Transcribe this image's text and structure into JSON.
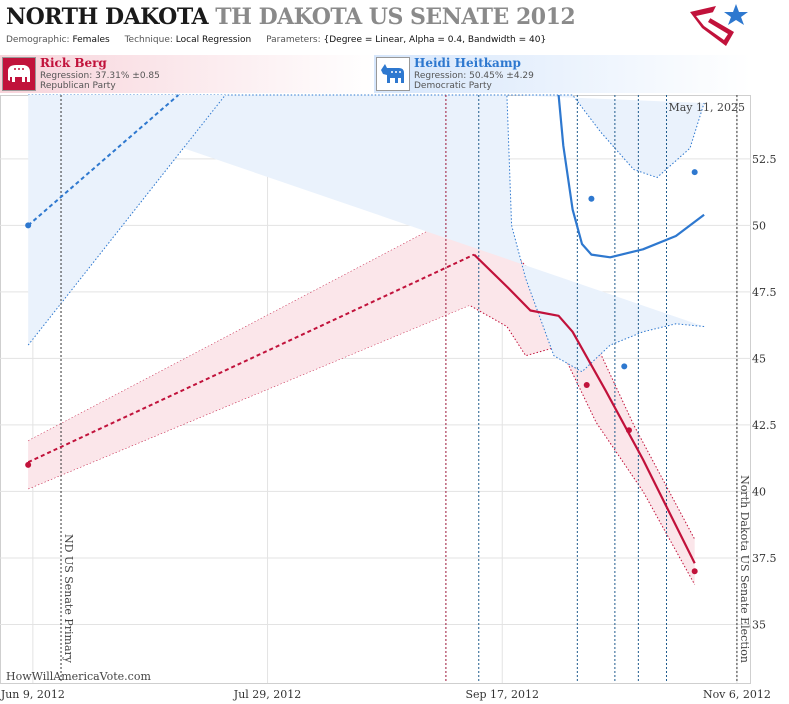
{
  "header": {
    "title_main": "NORTH DAKOTA",
    "title_sub": "TH DAKOTA US SENATE 2012",
    "demographic_label": "Demographic:",
    "demographic_value": "Females",
    "technique_label": "Technique:",
    "technique_value": "Local Regression",
    "parameters_label": "Parameters:",
    "parameters_value": "{Degree = Linear, Alpha = 0.4, Bandwidth = 40}"
  },
  "candidates": {
    "republican": {
      "name": "Rick Berg",
      "regression": "Regression: 37.31% ±0.85",
      "party": "Republican Party",
      "color": "#c1123b",
      "icon": "elephant-icon"
    },
    "democrat": {
      "name": "Heidi Heitkamp",
      "regression": "Regression: 50.45% ±4.29",
      "party": "Democratic Party",
      "color": "#2e78cf",
      "icon": "donkey-icon"
    }
  },
  "watermark": "HowWillAmericaVote.com",
  "date_stamp": "May 11, 2025",
  "chart_data": {
    "type": "line",
    "x_axis": {
      "type": "date",
      "min": "2012-06-02",
      "max": "2012-11-09",
      "ticks": [
        "2012-06-09",
        "2012-07-29",
        "2012-09-17",
        "2012-11-06"
      ],
      "tick_labels": [
        "Jun 9, 2012",
        "Jul 29, 2012",
        "Sep 17, 2012",
        "Nov 6, 2012"
      ]
    },
    "y_axis": {
      "min": 32.8,
      "max": 54.9,
      "ticks": [
        35,
        37.5,
        40,
        42.5,
        45,
        47.5,
        50,
        52.5
      ],
      "tick_labels": [
        "35",
        "37.5",
        "40",
        "42.5",
        "45",
        "47.5",
        "50",
        "52.5"
      ],
      "position": "right"
    },
    "grid": true,
    "events": [
      {
        "date": "2012-06-15",
        "label": "ND US Senate Primary"
      },
      {
        "date": "2012-11-06",
        "label": "North Dakota US Senate Election"
      }
    ],
    "poll_dates": [
      {
        "date": "2012-09-05",
        "party": "republican"
      },
      {
        "date": "2012-09-12",
        "party": "democrat"
      },
      {
        "date": "2012-10-03",
        "party": "democrat"
      },
      {
        "date": "2012-10-11",
        "party": "democrat"
      },
      {
        "date": "2012-10-16",
        "party": "democrat"
      },
      {
        "date": "2012-10-22",
        "party": "democrat"
      }
    ],
    "series": [
      {
        "name": "Rick Berg",
        "color": "#c1123b",
        "band_color": "#fbe6ea",
        "points": [
          [
            "2012-06-08",
            41.0
          ],
          [
            "2012-10-05",
            44.0
          ],
          [
            "2012-10-14",
            42.3
          ],
          [
            "2012-10-28",
            37.0
          ]
        ],
        "extrapolated_line": [
          [
            "2012-06-08",
            41.1
          ],
          [
            "2012-09-11",
            48.9
          ]
        ],
        "regression_line": [
          [
            "2012-09-11",
            48.9
          ],
          [
            "2012-09-18",
            47.7
          ],
          [
            "2012-09-23",
            46.8
          ],
          [
            "2012-09-29",
            46.6
          ],
          [
            "2012-10-02",
            46.0
          ],
          [
            "2012-10-09",
            43.8
          ],
          [
            "2012-10-17",
            41.2
          ],
          [
            "2012-10-28",
            37.3
          ]
        ],
        "band_upper": [
          [
            "2012-06-08",
            41.9
          ],
          [
            "2012-09-10",
            50.6
          ],
          [
            "2012-09-18",
            49.2
          ],
          [
            "2012-09-23",
            48.3
          ],
          [
            "2012-09-30",
            47.6
          ],
          [
            "2012-10-05",
            46.3
          ],
          [
            "2012-10-15",
            42.5
          ],
          [
            "2012-10-28",
            38.2
          ]
        ],
        "band_lower": [
          [
            "2012-06-08",
            40.1
          ],
          [
            "2012-09-10",
            47.0
          ],
          [
            "2012-09-18",
            46.2
          ],
          [
            "2012-09-22",
            45.1
          ],
          [
            "2012-09-28",
            45.4
          ],
          [
            "2012-10-01",
            44.8
          ],
          [
            "2012-10-07",
            42.6
          ],
          [
            "2012-10-17",
            40.0
          ],
          [
            "2012-10-28",
            36.5
          ]
        ]
      },
      {
        "name": "Heidi Heitkamp",
        "color": "#2e78cf",
        "band_color": "#eaf2fc",
        "points": [
          [
            "2012-06-08",
            50.0
          ],
          [
            "2012-10-06",
            51.0
          ],
          [
            "2012-10-13",
            44.7
          ],
          [
            "2012-10-28",
            52.0
          ]
        ],
        "extrapolated_line": [
          [
            "2012-06-08",
            50.0
          ],
          [
            "2012-07-10",
            55.0
          ]
        ],
        "regression_line": [
          [
            "2012-09-29",
            55.0
          ],
          [
            "2012-09-30",
            53.0
          ],
          [
            "2012-10-02",
            50.6
          ],
          [
            "2012-10-04",
            49.3
          ],
          [
            "2012-10-06",
            48.9
          ],
          [
            "2012-10-10",
            48.8
          ],
          [
            "2012-10-17",
            49.1
          ],
          [
            "2012-10-24",
            49.6
          ],
          [
            "2012-10-30",
            50.4
          ]
        ],
        "band_upper": [
          [
            "2012-06-08",
            54.9
          ],
          [
            "2012-07-30",
            54.9
          ],
          [
            "2012-09-29",
            54.9
          ],
          [
            "2012-10-02",
            54.9
          ],
          [
            "2012-10-08",
            53.5
          ],
          [
            "2012-10-15",
            52.1
          ],
          [
            "2012-10-20",
            51.8
          ],
          [
            "2012-10-27",
            52.9
          ],
          [
            "2012-10-30",
            54.6
          ]
        ],
        "band_lower": [
          [
            "2012-10-30",
            46.2
          ],
          [
            "2012-10-24",
            46.3
          ],
          [
            "2012-10-17",
            46.0
          ],
          [
            "2012-10-10",
            45.5
          ],
          [
            "2012-10-04",
            44.5
          ],
          [
            "2012-09-28",
            45.1
          ],
          [
            "2012-09-22",
            48.0
          ],
          [
            "2012-09-19",
            50.0
          ],
          [
            "2012-09-18",
            54.9
          ]
        ],
        "extrap_band_upper": [
          [
            "2012-06-08",
            55.0
          ],
          [
            "2012-06-08",
            55.0
          ]
        ],
        "extrap_band_lower": [
          [
            "2012-06-08",
            45.5
          ],
          [
            "2012-07-20",
            55.0
          ]
        ]
      }
    ]
  }
}
